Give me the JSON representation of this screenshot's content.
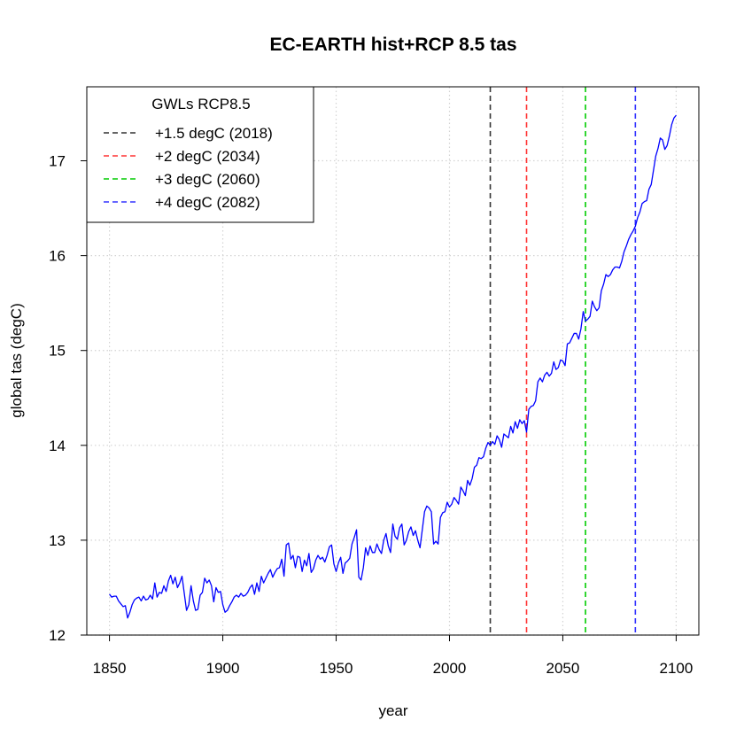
{
  "chart_data": {
    "type": "line",
    "title": "EC-EARTH hist+RCP 8.5 tas",
    "xlabel": "year",
    "ylabel": "global tas (degC)",
    "xlim": [
      1840,
      2110
    ],
    "ylim": [
      12,
      17.78
    ],
    "x_ticks": [
      1850,
      1900,
      1950,
      2000,
      2050,
      2100
    ],
    "y_ticks": [
      12,
      13,
      14,
      15,
      16,
      17
    ],
    "grid": true,
    "series": [
      {
        "name": "global tas",
        "color": "#0000ff",
        "x_start": 1850,
        "x_step": 1,
        "values": [
          12.43,
          12.4,
          12.41,
          12.41,
          12.36,
          12.33,
          12.3,
          12.31,
          12.18,
          12.24,
          12.32,
          12.37,
          12.39,
          12.4,
          12.36,
          12.41,
          12.37,
          12.38,
          12.42,
          12.38,
          12.55,
          12.4,
          12.45,
          12.44,
          12.52,
          12.46,
          12.57,
          12.63,
          12.54,
          12.61,
          12.5,
          12.55,
          12.62,
          12.44,
          12.26,
          12.32,
          12.52,
          12.36,
          12.26,
          12.27,
          12.42,
          12.45,
          12.6,
          12.55,
          12.58,
          12.52,
          12.35,
          12.5,
          12.45,
          12.46,
          12.32,
          12.24,
          12.26,
          12.31,
          12.35,
          12.4,
          12.42,
          12.4,
          12.44,
          12.41,
          12.42,
          12.45,
          12.5,
          12.53,
          12.43,
          12.55,
          12.46,
          12.62,
          12.55,
          12.6,
          12.65,
          12.69,
          12.61,
          12.66,
          12.7,
          12.71,
          12.8,
          12.62,
          12.95,
          12.97,
          12.8,
          12.84,
          12.71,
          12.83,
          12.82,
          12.67,
          12.79,
          12.73,
          12.86,
          12.66,
          12.7,
          12.79,
          12.84,
          12.8,
          12.82,
          12.77,
          12.84,
          12.93,
          12.95,
          12.75,
          12.67,
          12.76,
          12.82,
          12.65,
          12.76,
          12.78,
          12.81,
          12.96,
          13.03,
          13.11,
          12.61,
          12.58,
          12.71,
          12.92,
          12.84,
          12.94,
          12.87,
          12.87,
          12.96,
          12.9,
          12.86,
          13.0,
          13.07,
          12.94,
          12.87,
          13.17,
          13.04,
          13.01,
          13.13,
          13.17,
          12.95,
          13.0,
          13.09,
          13.14,
          13.05,
          13.1,
          13.0,
          12.92,
          13.11,
          13.3,
          13.36,
          13.34,
          13.3,
          12.96,
          12.99,
          12.96,
          13.24,
          13.29,
          13.3,
          13.4,
          13.35,
          13.38,
          13.45,
          13.42,
          13.38,
          13.56,
          13.52,
          13.47,
          13.63,
          13.58,
          13.65,
          13.77,
          13.79,
          13.87,
          13.86,
          13.88,
          13.97,
          14.03,
          14.0,
          14.04,
          14.01,
          14.1,
          14.06,
          13.98,
          14.12,
          14.1,
          14.08,
          14.2,
          14.13,
          14.25,
          14.18,
          14.27,
          14.23,
          14.26,
          14.14,
          14.38,
          14.41,
          14.42,
          14.47,
          14.67,
          14.71,
          14.67,
          14.74,
          14.77,
          14.73,
          14.76,
          14.88,
          14.8,
          14.82,
          14.9,
          14.89,
          14.84,
          15.07,
          15.08,
          15.13,
          15.18,
          15.18,
          15.12,
          15.23,
          15.41,
          15.31,
          15.33,
          15.36,
          15.52,
          15.46,
          15.42,
          15.45,
          15.63,
          15.7,
          15.8,
          15.78,
          15.8,
          15.85,
          15.88,
          15.88,
          15.87,
          15.94,
          16.04,
          16.1,
          16.17,
          16.22,
          16.26,
          16.31,
          16.4,
          16.46,
          16.55,
          16.57,
          16.58,
          16.7,
          16.75,
          16.9,
          17.05,
          17.13,
          17.24,
          17.22,
          17.12,
          17.16,
          17.26,
          17.38,
          17.45,
          17.48
        ]
      }
    ],
    "vlines": [
      {
        "x": 2018,
        "color": "#333333"
      },
      {
        "x": 2034,
        "color": "#ff3333"
      },
      {
        "x": 2060,
        "color": "#00cc00"
      },
      {
        "x": 2082,
        "color": "#3333ff"
      }
    ],
    "legend": {
      "title": "GWLs RCP8.5",
      "position": "top-left",
      "entries": [
        {
          "label": "+1.5 degC (2018)",
          "color": "#333333"
        },
        {
          "label": "+2 degC (2034)",
          "color": "#ff3333"
        },
        {
          "label": "+3 degC (2060)",
          "color": "#00cc00"
        },
        {
          "label": "+4 degC (2082)",
          "color": "#3333ff"
        }
      ]
    }
  }
}
